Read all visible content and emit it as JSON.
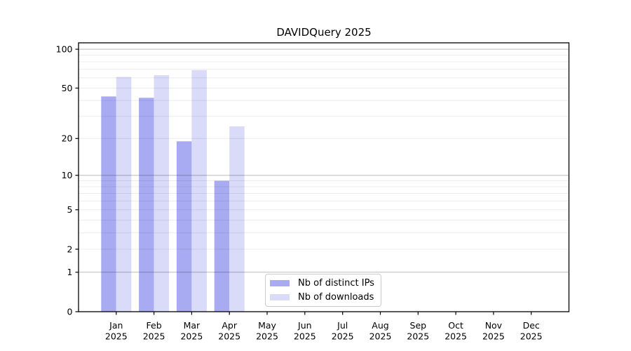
{
  "chart_data": {
    "type": "bar",
    "title": "DAVIDQuery 2025",
    "y_scale": "log1p",
    "ylim": [
      0,
      112
    ],
    "y_ticks": [
      0,
      1,
      2,
      5,
      10,
      20,
      50,
      100
    ],
    "grid": {
      "orientation": "horizontal",
      "minor_values": [
        2,
        3,
        4,
        5,
        6,
        7,
        8,
        9,
        20,
        30,
        40,
        50,
        60,
        70,
        80,
        90
      ],
      "major_values": [
        1,
        10,
        100
      ]
    },
    "categories": [
      {
        "month": "Jan",
        "year": "2025"
      },
      {
        "month": "Feb",
        "year": "2025"
      },
      {
        "month": "Mar",
        "year": "2025"
      },
      {
        "month": "Apr",
        "year": "2025"
      },
      {
        "month": "May",
        "year": "2025"
      },
      {
        "month": "Jun",
        "year": "2025"
      },
      {
        "month": "Jul",
        "year": "2025"
      },
      {
        "month": "Aug",
        "year": "2025"
      },
      {
        "month": "Sep",
        "year": "2025"
      },
      {
        "month": "Oct",
        "year": "2025"
      },
      {
        "month": "Nov",
        "year": "2025"
      },
      {
        "month": "Dec",
        "year": "2025"
      }
    ],
    "series": [
      {
        "name": "Nb of distinct IPs",
        "color": "#a9abf2",
        "values": [
          43,
          42,
          19,
          9,
          null,
          null,
          null,
          null,
          null,
          null,
          null,
          null
        ]
      },
      {
        "name": "Nb of downloads",
        "color": "#d9dbf8",
        "values": [
          61,
          63,
          69,
          25,
          null,
          null,
          null,
          null,
          null,
          null,
          null,
          null
        ]
      }
    ],
    "legend_position": "bottom-center-inside",
    "colors": {
      "spine": "#000000",
      "tick_label": "#000000",
      "grid_minor": "rgba(0,0,0,0.08)",
      "grid_major": "rgba(0,0,0,0.27)",
      "legend_border": "#cccccc"
    }
  }
}
